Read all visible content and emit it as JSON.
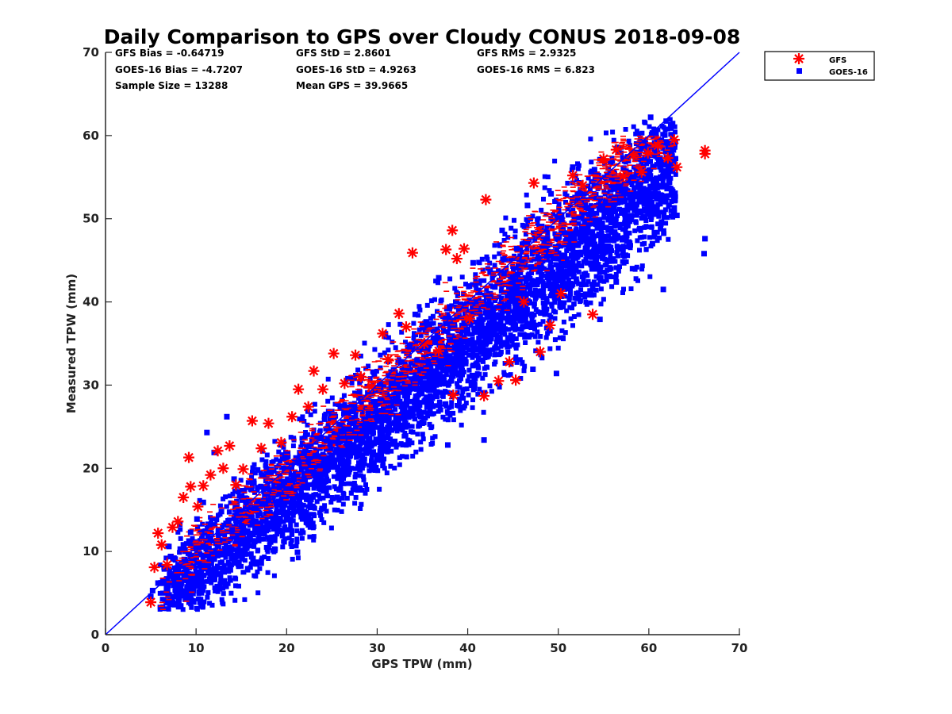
{
  "chart_data": {
    "type": "scatter",
    "title": "Daily Comparison to GPS over Cloudy CONUS 2018-09-08",
    "xlabel": "GPS TPW (mm)",
    "ylabel": "Measured TPW (mm)",
    "xlim": [
      0,
      70
    ],
    "ylim": [
      0,
      70
    ],
    "xticks": [
      0,
      10,
      20,
      30,
      40,
      50,
      60,
      70
    ],
    "yticks": [
      0,
      10,
      20,
      30,
      40,
      50,
      60,
      70
    ],
    "grid": false,
    "legend_position": "outside top-right",
    "stats": {
      "gfs_bias": "GFS Bias = -0.64719",
      "gfs_std": "GFS StD = 2.8601",
      "gfs_rms": "GFS RMS = 2.9325",
      "goes_bias": "GOES-16 Bias = -4.7207",
      "goes_std": "GOES-16 StD = 4.9263",
      "goes_rms": "GOES-16 RMS = 6.823",
      "sample_size": "Sample Size = 13288",
      "mean_gps": "Mean GPS = 39.9665"
    },
    "reference_line": {
      "x": [
        0,
        70
      ],
      "y": [
        0,
        70
      ],
      "color": "#0000ff"
    },
    "series": [
      {
        "name": "GFS",
        "marker": "asterisk",
        "color": "#ff0000",
        "points": [
          [
            5.0,
            3.9
          ],
          [
            5.4,
            8.1
          ],
          [
            5.8,
            12.2
          ],
          [
            6.2,
            10.8
          ],
          [
            6.8,
            8.4
          ],
          [
            7.4,
            12.9
          ],
          [
            8.0,
            13.6
          ],
          [
            8.6,
            16.5
          ],
          [
            9.2,
            21.3
          ],
          [
            9.4,
            17.8
          ],
          [
            10.2,
            15.4
          ],
          [
            10.8,
            17.9
          ],
          [
            11.6,
            19.2
          ],
          [
            12.4,
            22.1
          ],
          [
            13.0,
            20.0
          ],
          [
            13.7,
            22.7
          ],
          [
            14.4,
            18.0
          ],
          [
            15.2,
            19.9
          ],
          [
            16.2,
            25.7
          ],
          [
            17.2,
            22.4
          ],
          [
            18.0,
            25.4
          ],
          [
            19.4,
            23.1
          ],
          [
            20.6,
            26.2
          ],
          [
            21.3,
            29.5
          ],
          [
            22.4,
            27.4
          ],
          [
            23.0,
            31.7
          ],
          [
            24.0,
            29.5
          ],
          [
            25.2,
            33.8
          ],
          [
            26.4,
            30.2
          ],
          [
            27.6,
            33.6
          ],
          [
            28.2,
            31.0
          ],
          [
            29.4,
            29.8
          ],
          [
            30.6,
            36.2
          ],
          [
            31.2,
            33.1
          ],
          [
            32.4,
            38.6
          ],
          [
            33.2,
            37.0
          ],
          [
            33.9,
            45.9
          ],
          [
            35.2,
            35.0
          ],
          [
            36.8,
            34.1
          ],
          [
            37.6,
            46.3
          ],
          [
            38.3,
            48.6
          ],
          [
            38.8,
            45.2
          ],
          [
            39.6,
            46.4
          ],
          [
            38.4,
            28.8
          ],
          [
            40.2,
            38.0
          ],
          [
            41.8,
            28.7
          ],
          [
            42.0,
            52.3
          ],
          [
            43.4,
            30.5
          ],
          [
            44.6,
            32.8
          ],
          [
            45.3,
            30.6
          ],
          [
            46.2,
            40.0
          ],
          [
            47.3,
            54.3
          ],
          [
            48.0,
            34.0
          ],
          [
            49.1,
            37.2
          ],
          [
            50.3,
            41.0
          ],
          [
            51.6,
            55.2
          ],
          [
            52.7,
            54.0
          ],
          [
            53.8,
            38.5
          ],
          [
            55.0,
            57.2
          ],
          [
            56.4,
            58.3
          ],
          [
            57.2,
            55.1
          ],
          [
            58.3,
            57.6
          ],
          [
            59.2,
            55.6
          ],
          [
            59.9,
            57.9
          ],
          [
            61.0,
            58.8
          ],
          [
            62.1,
            57.3
          ],
          [
            62.8,
            59.5
          ],
          [
            63.1,
            56.2
          ],
          [
            66.2,
            58.2
          ],
          [
            66.2,
            57.8
          ]
        ]
      },
      {
        "name": "GOES-16",
        "marker": "square",
        "color": "#0000ff",
        "points": [
          [
            5.0,
            4.6
          ],
          [
            5.2,
            5.3
          ],
          [
            5.8,
            6.2
          ],
          [
            6.5,
            7.9
          ],
          [
            7.2,
            9.4
          ],
          [
            8.0,
            8.1
          ],
          [
            8.6,
            10.8
          ],
          [
            9.4,
            12.3
          ],
          [
            10.1,
            13.9
          ],
          [
            10.8,
            15.9
          ],
          [
            11.2,
            24.3
          ],
          [
            12.0,
            21.9
          ],
          [
            12.4,
            9.5
          ],
          [
            13.4,
            26.2
          ],
          [
            14.0,
            12.6
          ],
          [
            14.8,
            16.7
          ],
          [
            15.6,
            10.4
          ],
          [
            16.4,
            15.2
          ],
          [
            17.2,
            8.6
          ],
          [
            18.4,
            13.4
          ],
          [
            19.2,
            17.7
          ],
          [
            20.0,
            12.6
          ],
          [
            21.2,
            9.9
          ],
          [
            21.9,
            21.8
          ],
          [
            22.6,
            16.0
          ],
          [
            23.4,
            18.5
          ],
          [
            24.2,
            25.9
          ],
          [
            25.0,
            20.6
          ],
          [
            25.6,
            16.5
          ],
          [
            26.4,
            22.1
          ],
          [
            27.4,
            25.4
          ],
          [
            28.1,
            19.8
          ],
          [
            29.0,
            26.6
          ],
          [
            30.0,
            21.0
          ],
          [
            31.0,
            26.0
          ],
          [
            32.0,
            28.4
          ],
          [
            33.0,
            27.5
          ],
          [
            33.6,
            34.8
          ],
          [
            34.2,
            38.5
          ],
          [
            35.0,
            30.1
          ],
          [
            36.0,
            29.4
          ],
          [
            36.8,
            42.9
          ],
          [
            37.2,
            31.0
          ],
          [
            37.8,
            22.8
          ],
          [
            38.6,
            31.8
          ],
          [
            39.6,
            37.4
          ],
          [
            40.2,
            41.9
          ],
          [
            40.7,
            29.6
          ],
          [
            41.8,
            23.4
          ],
          [
            42.4,
            36.6
          ],
          [
            43.0,
            41.8
          ],
          [
            43.8,
            48.6
          ],
          [
            44.4,
            34.6
          ],
          [
            45.0,
            42.9
          ],
          [
            45.8,
            39.4
          ],
          [
            46.6,
            51.6
          ],
          [
            47.2,
            31.9
          ],
          [
            47.8,
            45.3
          ],
          [
            48.4,
            40.6
          ],
          [
            49.2,
            53.0
          ],
          [
            49.8,
            31.4
          ],
          [
            50.4,
            49.9
          ],
          [
            51.0,
            43.7
          ],
          [
            51.6,
            56.2
          ],
          [
            52.2,
            46.8
          ],
          [
            52.6,
            42.1
          ],
          [
            53.4,
            50.5
          ],
          [
            54.0,
            55.9
          ],
          [
            54.6,
            37.9
          ],
          [
            55.2,
            52.0
          ],
          [
            55.9,
            48.4
          ],
          [
            56.4,
            42.4
          ],
          [
            57.0,
            53.3
          ],
          [
            57.8,
            47.2
          ],
          [
            58.2,
            44.0
          ],
          [
            58.8,
            55.5
          ],
          [
            59.5,
            51.8
          ],
          [
            60.2,
            62.2
          ],
          [
            60.8,
            60.3
          ],
          [
            61.4,
            49.6
          ],
          [
            61.6,
            41.5
          ],
          [
            62.2,
            53.7
          ],
          [
            62.8,
            51.3
          ],
          [
            63.1,
            50.4
          ],
          [
            66.1,
            45.8
          ],
          [
            66.2,
            47.6
          ],
          [
            7.0,
            10.6
          ],
          [
            8.2,
            13.3
          ],
          [
            9.0,
            7.6
          ],
          [
            11.6,
            11.6
          ],
          [
            12.8,
            14.8
          ],
          [
            14.2,
            18.7
          ],
          [
            15.0,
            13.1
          ],
          [
            16.8,
            19.8
          ],
          [
            18.0,
            16.2
          ],
          [
            19.8,
            21.3
          ],
          [
            20.8,
            18.6
          ],
          [
            22.4,
            20.8
          ],
          [
            23.8,
            23.6
          ],
          [
            24.8,
            22.9
          ],
          [
            26.0,
            24.4
          ],
          [
            27.0,
            22.3
          ],
          [
            28.6,
            24.9
          ],
          [
            29.6,
            28.0
          ],
          [
            30.6,
            24.1
          ],
          [
            31.6,
            30.2
          ],
          [
            32.6,
            32.8
          ],
          [
            34.4,
            33.0
          ],
          [
            35.4,
            37.6
          ],
          [
            36.4,
            35.2
          ],
          [
            38.0,
            39.4
          ],
          [
            39.0,
            34.4
          ],
          [
            40.6,
            44.7
          ],
          [
            41.4,
            35.9
          ],
          [
            42.8,
            38.9
          ],
          [
            44.0,
            43.4
          ],
          [
            45.4,
            46.4
          ],
          [
            46.0,
            38.2
          ],
          [
            47.0,
            44.2
          ],
          [
            48.8,
            47.6
          ],
          [
            50.0,
            45.2
          ],
          [
            51.4,
            48.0
          ],
          [
            53.0,
            47.4
          ],
          [
            54.2,
            45.0
          ],
          [
            55.6,
            46.6
          ],
          [
            57.4,
            50.0
          ],
          [
            59.0,
            48.8
          ],
          [
            60.4,
            47.0
          ],
          [
            61.0,
            52.4
          ]
        ]
      }
    ]
  },
  "legend": {
    "entries": [
      {
        "label": "GFS",
        "color": "#ff0000",
        "marker": "asterisk"
      },
      {
        "label": "GOES-16",
        "color": "#0000ff",
        "marker": "square"
      }
    ]
  }
}
